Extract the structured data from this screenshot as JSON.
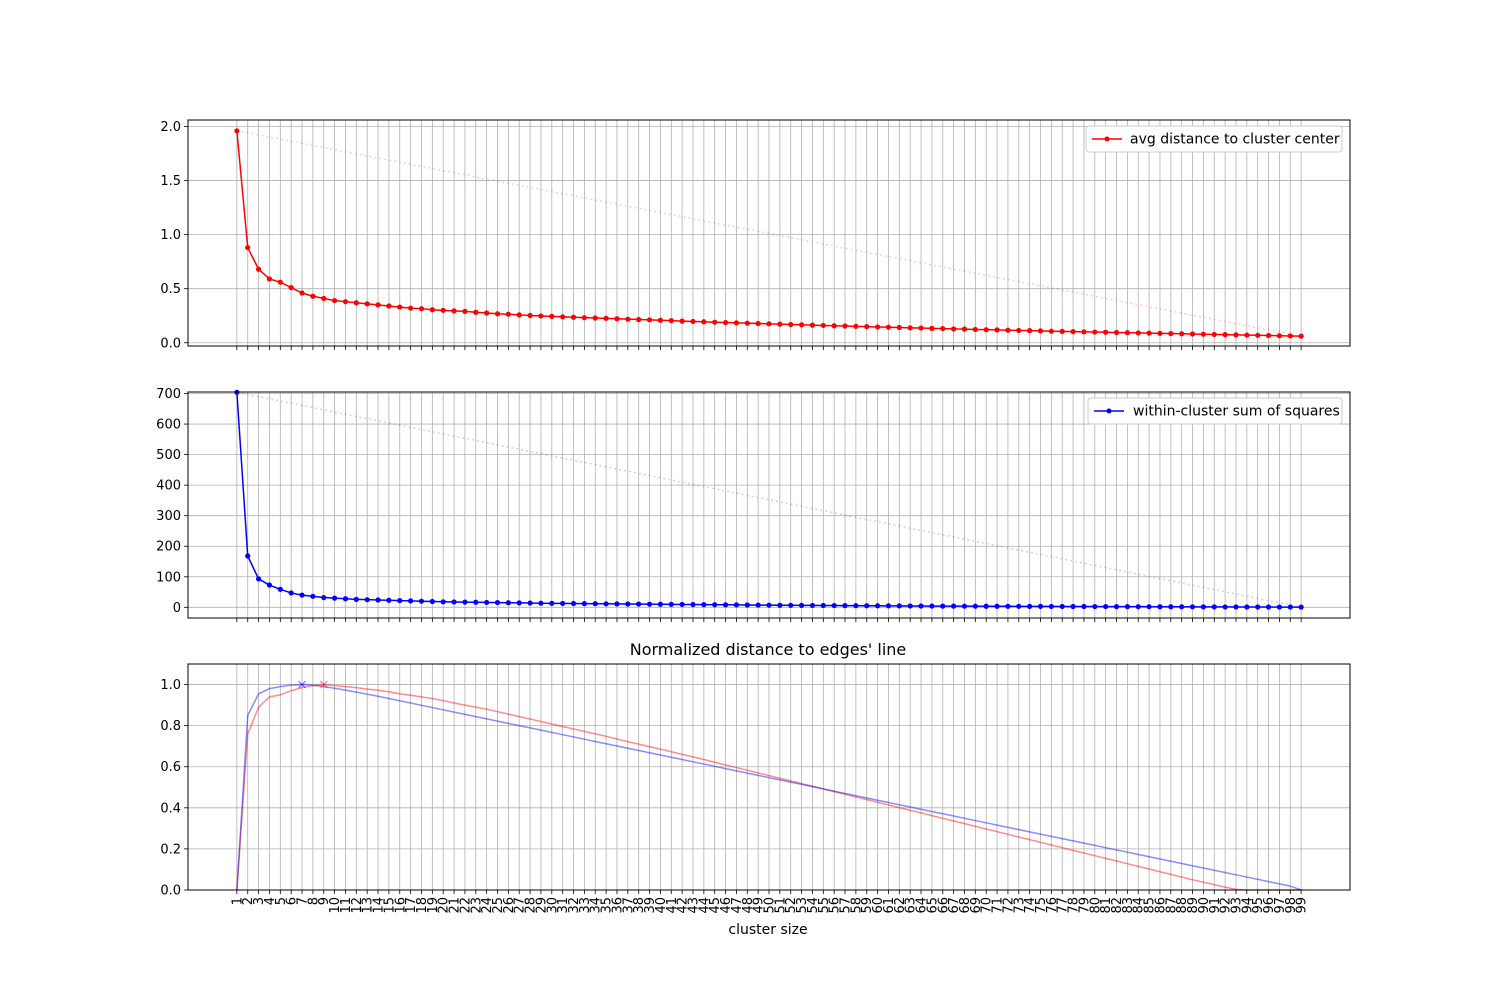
{
  "chart_data": [
    {
      "type": "line",
      "title": "",
      "xlabel": "",
      "ylabel": "",
      "grid": true,
      "legend": "top-right",
      "xlim": [
        -3.5,
        103.5
      ],
      "ylim": [
        -0.03,
        2.06
      ],
      "yticks": [
        "0.0",
        "0.5",
        "1.0",
        "1.5",
        "2.0"
      ],
      "series": [
        {
          "name": "avg distance to cluster center",
          "color": "#ff0000",
          "marker": "dot",
          "x": [
            1,
            2,
            3,
            4,
            5,
            6,
            7,
            8,
            9,
            10,
            11,
            12,
            13,
            14,
            15,
            16,
            17,
            18,
            19,
            20,
            21,
            22,
            23,
            24,
            25,
            26,
            27,
            28,
            29,
            30,
            31,
            32,
            33,
            34,
            35,
            36,
            37,
            38,
            39,
            40,
            41,
            42,
            43,
            44,
            45,
            46,
            47,
            48,
            49,
            50,
            51,
            52,
            53,
            54,
            55,
            56,
            57,
            58,
            59,
            60,
            61,
            62,
            63,
            64,
            65,
            66,
            67,
            68,
            69,
            70,
            71,
            72,
            73,
            74,
            75,
            76,
            77,
            78,
            79,
            80,
            81,
            82,
            83,
            84,
            85,
            86,
            87,
            88,
            89,
            90,
            91,
            92,
            93,
            94,
            95,
            96,
            97,
            98,
            99
          ],
          "values": [
            1.96,
            0.88,
            0.68,
            0.59,
            0.56,
            0.51,
            0.46,
            0.43,
            0.41,
            0.39,
            0.38,
            0.37,
            0.36,
            0.35,
            0.34,
            0.33,
            0.32,
            0.315,
            0.305,
            0.3,
            0.295,
            0.29,
            0.282,
            0.275,
            0.268,
            0.264,
            0.258,
            0.252,
            0.248,
            0.244,
            0.24,
            0.236,
            0.232,
            0.229,
            0.226,
            0.222,
            0.218,
            0.215,
            0.212,
            0.208,
            0.205,
            0.2,
            0.197,
            0.194,
            0.19,
            0.187,
            0.184,
            0.181,
            0.178,
            0.175,
            0.172,
            0.169,
            0.166,
            0.163,
            0.16,
            0.157,
            0.155,
            0.152,
            0.149,
            0.146,
            0.144,
            0.141,
            0.138,
            0.136,
            0.133,
            0.131,
            0.128,
            0.126,
            0.123,
            0.121,
            0.119,
            0.116,
            0.114,
            0.112,
            0.11,
            0.107,
            0.105,
            0.103,
            0.101,
            0.099,
            0.097,
            0.095,
            0.093,
            0.091,
            0.089,
            0.087,
            0.085,
            0.083,
            0.081,
            0.079,
            0.077,
            0.075,
            0.073,
            0.071,
            0.069,
            0.067,
            0.065,
            0.063,
            0.061
          ]
        }
      ],
      "reference_line": {
        "from": [
          1,
          1.96
        ],
        "to": [
          99,
          0.061
        ],
        "color": "#ff0000"
      }
    },
    {
      "type": "line",
      "title": "",
      "xlabel": "",
      "ylabel": "",
      "grid": true,
      "legend": "top-right",
      "xlim": [
        -3.5,
        103.5
      ],
      "ylim": [
        -35,
        705
      ],
      "yticks": [
        "0",
        "100",
        "200",
        "300",
        "400",
        "500",
        "600",
        "700"
      ],
      "series": [
        {
          "name": "within-cluster sum of squares",
          "color": "#0000ff",
          "marker": "dot",
          "x": [
            1,
            2,
            3,
            4,
            5,
            6,
            7,
            8,
            9,
            10,
            11,
            12,
            13,
            14,
            15,
            16,
            17,
            18,
            19,
            20,
            21,
            22,
            23,
            24,
            25,
            26,
            27,
            28,
            29,
            30,
            31,
            32,
            33,
            34,
            35,
            36,
            37,
            38,
            39,
            40,
            41,
            42,
            43,
            44,
            45,
            46,
            47,
            48,
            49,
            50,
            51,
            52,
            53,
            54,
            55,
            56,
            57,
            58,
            59,
            60,
            61,
            62,
            63,
            64,
            65,
            66,
            67,
            68,
            69,
            70,
            71,
            72,
            73,
            74,
            75,
            76,
            77,
            78,
            79,
            80,
            81,
            82,
            83,
            84,
            85,
            86,
            87,
            88,
            89,
            90,
            91,
            92,
            93,
            94,
            95,
            96,
            97,
            98,
            99
          ],
          "values": [
            704,
            168,
            93,
            73,
            59,
            47,
            40,
            36,
            32,
            30,
            28,
            26,
            25,
            24,
            23,
            22,
            21,
            20,
            19,
            18,
            17.5,
            17,
            16.5,
            16,
            15.5,
            15,
            14.5,
            14,
            13.5,
            13,
            12.7,
            12.4,
            12.1,
            11.8,
            11.5,
            11.2,
            10.9,
            10.6,
            10.3,
            10,
            9.7,
            9.4,
            9.1,
            8.8,
            8.5,
            8.2,
            7.9,
            7.6,
            7.3,
            7,
            6.8,
            6.6,
            6.4,
            6.2,
            6,
            5.8,
            5.6,
            5.4,
            5.2,
            5,
            4.8,
            4.6,
            4.4,
            4.2,
            4,
            3.9,
            3.8,
            3.7,
            3.6,
            3.5,
            3.4,
            3.3,
            3.2,
            3.1,
            3,
            2.9,
            2.8,
            2.7,
            2.6,
            2.5,
            2.4,
            2.3,
            2.2,
            2.1,
            2,
            1.9,
            1.8,
            1.7,
            1.6,
            1.5,
            1.4,
            1.3,
            1.2,
            1.1,
            1,
            0.9,
            0.8,
            0.7,
            0.6
          ]
        }
      ],
      "reference_line": {
        "from": [
          1,
          704
        ],
        "to": [
          99,
          0.6
        ],
        "color": "#0000ff"
      }
    },
    {
      "type": "line",
      "title": "Normalized distance to edges' line",
      "xlabel": "cluster size",
      "ylabel": "",
      "grid": true,
      "xlim": [
        -3.5,
        103.5
      ],
      "ylim": [
        0,
        1.1
      ],
      "yticks": [
        "0.0",
        "0.2",
        "0.4",
        "0.6",
        "0.8",
        "1.0"
      ],
      "xticks": [
        "1",
        "2",
        "3",
        "4",
        "5",
        "6",
        "7",
        "8",
        "9",
        "10",
        "11",
        "12",
        "13",
        "14",
        "15",
        "16",
        "17",
        "18",
        "19",
        "20",
        "21",
        "22",
        "23",
        "24",
        "25",
        "26",
        "27",
        "28",
        "29",
        "30",
        "31",
        "32",
        "33",
        "34",
        "35",
        "36",
        "37",
        "38",
        "39",
        "40",
        "41",
        "42",
        "43",
        "44",
        "45",
        "46",
        "47",
        "48",
        "49",
        "50",
        "51",
        "52",
        "53",
        "54",
        "55",
        "56",
        "57",
        "58",
        "59",
        "60",
        "61",
        "62",
        "63",
        "64",
        "65",
        "66",
        "67",
        "68",
        "69",
        "70",
        "71",
        "72",
        "73",
        "74",
        "75",
        "76",
        "77",
        "78",
        "79",
        "80",
        "81",
        "82",
        "83",
        "84",
        "85",
        "86",
        "87",
        "88",
        "89",
        "90",
        "91",
        "92",
        "93",
        "94",
        "95",
        "96",
        "97",
        "98",
        "99"
      ],
      "series": [
        {
          "color": "#ff0000",
          "x": [
            1,
            2,
            3,
            4,
            5,
            6,
            7,
            8,
            9,
            10,
            11,
            12,
            13,
            14,
            15,
            16,
            17,
            18,
            19,
            20,
            21,
            22,
            23,
            24,
            25,
            26,
            27,
            28,
            29,
            30,
            31,
            32,
            33,
            34,
            35,
            36,
            37,
            38,
            39,
            40,
            41,
            42,
            43,
            44,
            45,
            46,
            47,
            48,
            49,
            50,
            51,
            52,
            53,
            54,
            55,
            56,
            57,
            58,
            59,
            60,
            61,
            62,
            63,
            64,
            65,
            66,
            67,
            68,
            69,
            70,
            71,
            72,
            73,
            74,
            75,
            76,
            77,
            78,
            79,
            80,
            81,
            82,
            83,
            84,
            85,
            86,
            87,
            88,
            89,
            90,
            91,
            92,
            93,
            94,
            95,
            96,
            97,
            98,
            99
          ],
          "values": [
            0,
            0.76,
            0.89,
            0.94,
            0.95,
            0.97,
            0.985,
            0.995,
            1.0,
            0.995,
            0.99,
            0.985,
            0.978,
            0.972,
            0.965,
            0.955,
            0.948,
            0.94,
            0.932,
            0.922,
            0.91,
            0.9,
            0.89,
            0.88,
            0.868,
            0.856,
            0.844,
            0.832,
            0.82,
            0.808,
            0.796,
            0.784,
            0.772,
            0.76,
            0.748,
            0.735,
            0.722,
            0.71,
            0.698,
            0.686,
            0.673,
            0.66,
            0.648,
            0.635,
            0.622,
            0.609,
            0.596,
            0.583,
            0.57,
            0.557,
            0.544,
            0.531,
            0.518,
            0.505,
            0.492,
            0.479,
            0.466,
            0.453,
            0.44,
            0.427,
            0.414,
            0.401,
            0.388,
            0.375,
            0.362,
            0.349,
            0.336,
            0.323,
            0.31,
            0.297,
            0.284,
            0.271,
            0.258,
            0.245,
            0.232,
            0.219,
            0.206,
            0.193,
            0.18,
            0.167,
            0.154,
            0.141,
            0.128,
            0.115,
            0.102,
            0.089,
            0.076,
            0.063,
            0.05,
            0.038,
            0.026,
            0.014,
            0.003,
            0.0,
            0.0,
            0.0,
            0.0,
            0.0,
            0.0
          ]
        },
        {
          "color": "#0000ff",
          "x": [
            1,
            2,
            3,
            4,
            5,
            6,
            7,
            8,
            9,
            10,
            11,
            12,
            13,
            14,
            15,
            16,
            17,
            18,
            19,
            20,
            21,
            22,
            23,
            24,
            25,
            26,
            27,
            28,
            29,
            30,
            31,
            32,
            33,
            34,
            35,
            36,
            37,
            38,
            39,
            40,
            41,
            42,
            43,
            44,
            45,
            46,
            47,
            48,
            49,
            50,
            51,
            52,
            53,
            54,
            55,
            56,
            57,
            58,
            59,
            60,
            61,
            62,
            63,
            64,
            65,
            66,
            67,
            68,
            69,
            70,
            71,
            72,
            73,
            74,
            75,
            76,
            77,
            78,
            79,
            80,
            81,
            82,
            83,
            84,
            85,
            86,
            87,
            88,
            89,
            90,
            91,
            92,
            93,
            94,
            95,
            96,
            97,
            98,
            99
          ],
          "values": [
            0,
            0.85,
            0.955,
            0.98,
            0.99,
            0.997,
            1.0,
            0.997,
            0.99,
            0.982,
            0.973,
            0.963,
            0.953,
            0.943,
            0.932,
            0.921,
            0.91,
            0.899,
            0.888,
            0.877,
            0.866,
            0.855,
            0.844,
            0.833,
            0.822,
            0.811,
            0.8,
            0.789,
            0.778,
            0.767,
            0.756,
            0.745,
            0.734,
            0.723,
            0.712,
            0.701,
            0.69,
            0.679,
            0.668,
            0.657,
            0.646,
            0.635,
            0.624,
            0.613,
            0.602,
            0.591,
            0.58,
            0.569,
            0.558,
            0.547,
            0.536,
            0.525,
            0.514,
            0.503,
            0.492,
            0.481,
            0.47,
            0.459,
            0.448,
            0.437,
            0.426,
            0.415,
            0.404,
            0.393,
            0.382,
            0.371,
            0.36,
            0.349,
            0.338,
            0.327,
            0.316,
            0.305,
            0.294,
            0.283,
            0.272,
            0.261,
            0.25,
            0.239,
            0.228,
            0.217,
            0.206,
            0.195,
            0.184,
            0.173,
            0.162,
            0.151,
            0.14,
            0.129,
            0.118,
            0.107,
            0.096,
            0.085,
            0.074,
            0.063,
            0.052,
            0.041,
            0.03,
            0.019,
            0.0
          ]
        }
      ],
      "markers": [
        {
          "x": 7,
          "y": 1.0,
          "color": "#0000ff",
          "shape": "x"
        },
        {
          "x": 9,
          "y": 1.0,
          "color": "#ff0000",
          "shape": "x"
        }
      ]
    }
  ]
}
